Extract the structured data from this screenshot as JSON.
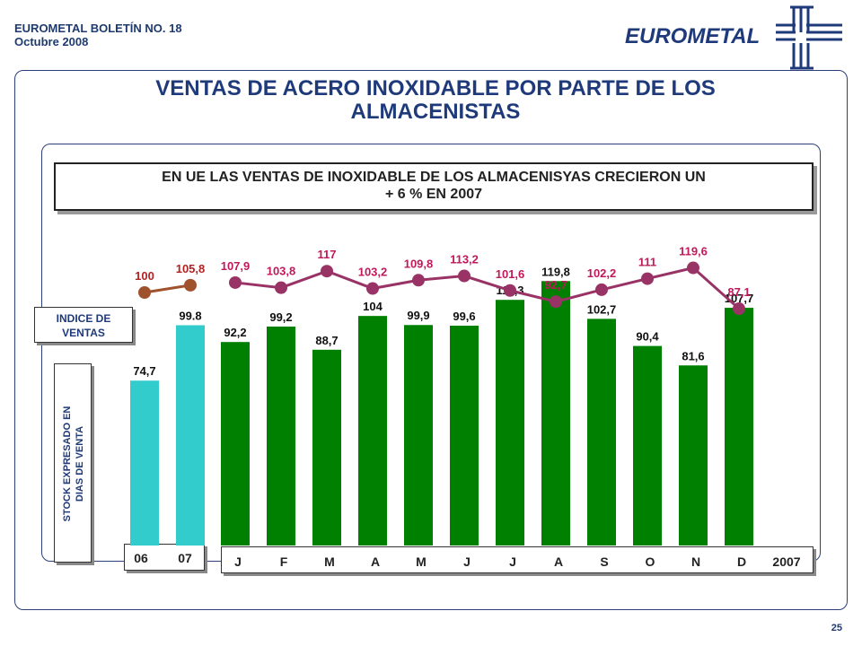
{
  "header": {
    "line1": "EUROMETAL BOLETÍN NO. 18",
    "line2": "Octubre 2008"
  },
  "logo": {
    "text": "EUROMETAL"
  },
  "page_title_l1": "VENTAS DE ACERO INOXIDABLE  POR PARTE DE LOS",
  "page_title_l2": "ALMACENISTAS",
  "headline_l1": "EN UE LAS VENTAS DE INOXIDABLE DE LOS ALMACENISYAS   CRECIERON UN",
  "headline_l2": "+ 6 %  EN 2007",
  "labels": {
    "index": "INDICE DE VENTAS",
    "stock_l1": "STOCK EXPRESADO EN",
    "stock_l2": "DIAS DE VENTA"
  },
  "page_number": "25",
  "colors": {
    "annual_bar": "#33CCCC",
    "monthly_bar": "#008000",
    "annual_line": "#A0522D",
    "monthly_line": "#993366"
  },
  "chart_data": {
    "type": "bar",
    "categories": [
      "06",
      "07",
      "J",
      "F",
      "M",
      "A",
      "M",
      "J",
      "J",
      "A",
      "S",
      "O",
      "N",
      "D"
    ],
    "year_label": "2007",
    "series": [
      {
        "values": [
          74.7,
          99.8,
          92.2,
          99.2,
          88.7,
          104,
          99.9,
          99.6,
          111.3,
          119.8,
          102.7,
          90.4,
          81.6,
          107.7
        ]
      },
      {
        "type": "line",
        "values": [
          100,
          105.8,
          107.9,
          103.8,
          117,
          103.2,
          109.8,
          113.2,
          101.6,
          92.7,
          102.2,
          111,
          119.6,
          87.1
        ]
      }
    ],
    "bar_labels": [
      "74,7",
      "99.8",
      "92,2",
      "99,2",
      "88,7",
      "104",
      "99,9",
      "99,6",
      "111,3",
      "119,8",
      "102,7",
      "90,4",
      "81,6",
      "107,7"
    ],
    "line_labels": [
      "100",
      "105,8",
      "107,9",
      "103,8",
      "117",
      "103,2",
      "109,8",
      "113,2",
      "101,6",
      "92,7",
      "102,2",
      "111",
      "119,6",
      "87,1"
    ]
  }
}
